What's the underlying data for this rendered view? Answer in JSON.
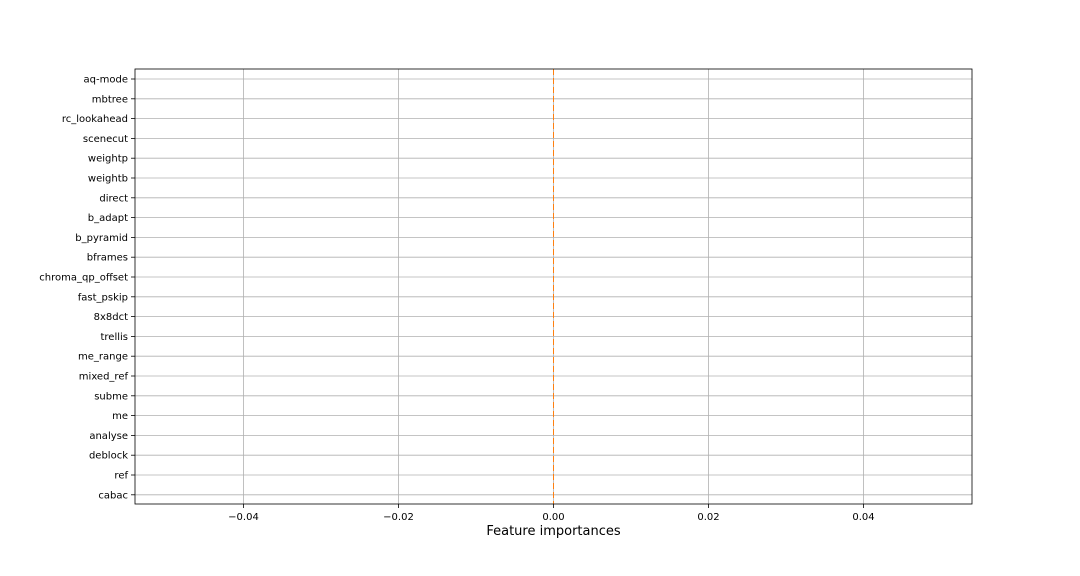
{
  "chart_data": {
    "type": "bar",
    "orientation": "horizontal",
    "title": "",
    "xlabel": "Feature importances",
    "ylabel": "",
    "xlim": [
      -0.054,
      0.054
    ],
    "x_ticks": [
      -0.04,
      -0.02,
      0.0,
      0.02,
      0.04
    ],
    "x_tick_labels": [
      "−0.04",
      "−0.02",
      "0.00",
      "0.02",
      "0.04"
    ],
    "grid": true,
    "categories": [
      "aq-mode",
      "mbtree",
      "rc_lookahead",
      "scenecut",
      "weightp",
      "weightb",
      "direct",
      "b_adapt",
      "b_pyramid",
      "bframes",
      "chroma_qp_offset",
      "fast_pskip",
      "8x8dct",
      "trellis",
      "me_range",
      "mixed_ref",
      "subme",
      "me",
      "analyse",
      "deblock",
      "ref",
      "cabac"
    ],
    "values": [
      0,
      0,
      0,
      0,
      0,
      0,
      0,
      0,
      0,
      0,
      0,
      0,
      0,
      0,
      0,
      0,
      0,
      0,
      0,
      0,
      0,
      0
    ],
    "colors": {
      "bar": "#1f77b4",
      "zero_line": "#ff7f0e",
      "grid": "#b0b0b0",
      "frame": "#000000"
    },
    "zero_line_style": "dashed"
  }
}
